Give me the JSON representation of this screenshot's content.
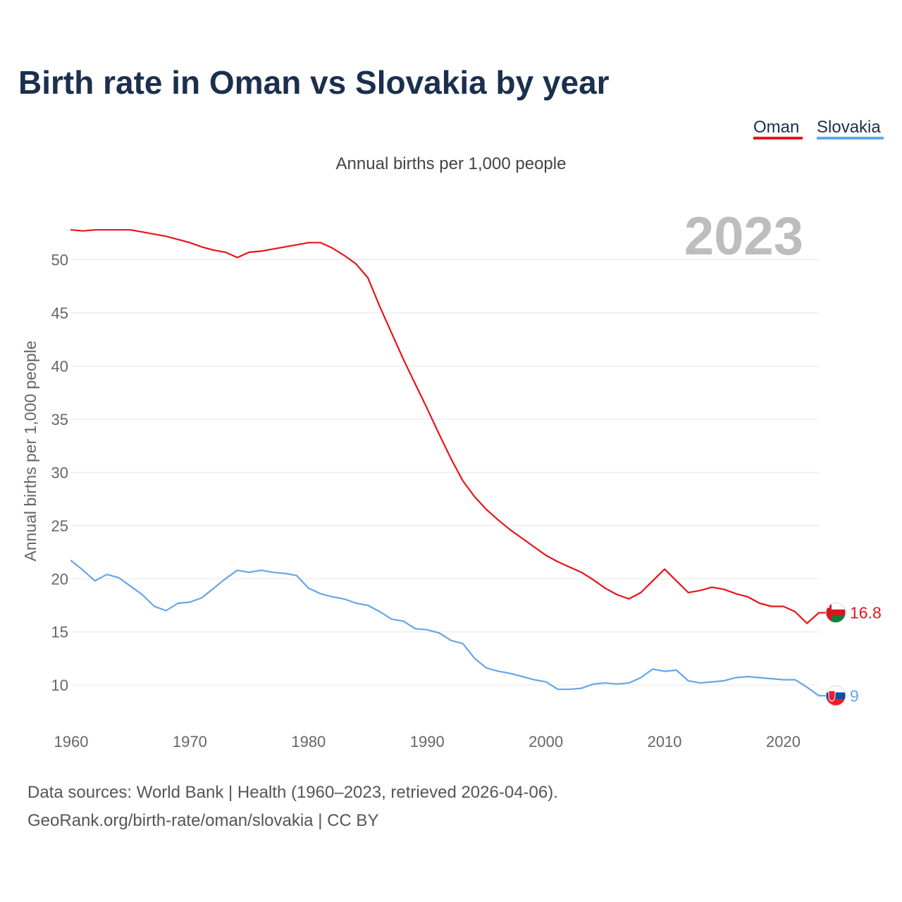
{
  "chart_data": {
    "type": "line",
    "title": "Birth rate in Oman vs Slovakia by year",
    "subtitle": "Annual births per 1,000 people",
    "ylabel": "Annual births per 1,000 people",
    "xlabel": "",
    "year_label": "2023",
    "xlim": [
      1960,
      2023
    ],
    "ylim": [
      6.5,
      55.2
    ],
    "y_ticks": [
      10,
      15,
      20,
      25,
      30,
      35,
      40,
      45,
      50
    ],
    "x_ticks": [
      1960,
      1970,
      1980,
      1990,
      2000,
      2010,
      2020
    ],
    "grid": true,
    "legend": "top-right",
    "x": [
      1960,
      1961,
      1962,
      1963,
      1964,
      1965,
      1966,
      1967,
      1968,
      1969,
      1970,
      1971,
      1972,
      1973,
      1974,
      1975,
      1976,
      1977,
      1978,
      1979,
      1980,
      1981,
      1982,
      1983,
      1984,
      1985,
      1986,
      1987,
      1988,
      1989,
      1990,
      1991,
      1992,
      1993,
      1994,
      1995,
      1996,
      1997,
      1998,
      1999,
      2000,
      2001,
      2002,
      2003,
      2004,
      2005,
      2006,
      2007,
      2008,
      2009,
      2010,
      2011,
      2012,
      2013,
      2014,
      2015,
      2016,
      2017,
      2018,
      2019,
      2020,
      2021,
      2022,
      2023
    ],
    "series": [
      {
        "name": "Oman",
        "color": "#e8141b",
        "end_label": "16.8",
        "values": [
          52.8,
          52.7,
          52.8,
          52.8,
          52.8,
          52.8,
          52.6,
          52.4,
          52.2,
          51.9,
          51.6,
          51.2,
          50.9,
          50.7,
          50.2,
          50.7,
          50.8,
          51.0,
          51.2,
          51.4,
          51.6,
          51.6,
          51.1,
          50.4,
          49.6,
          48.3,
          45.6,
          43.1,
          40.6,
          38.3,
          36.0,
          33.6,
          31.3,
          29.2,
          27.7,
          26.5,
          25.5,
          24.6,
          23.8,
          23.0,
          22.2,
          21.6,
          21.1,
          20.6,
          19.9,
          19.1,
          18.5,
          18.1,
          18.7,
          19.8,
          20.9,
          19.8,
          18.7,
          18.9,
          19.2,
          19.0,
          18.6,
          18.3,
          17.7,
          17.4,
          17.4,
          16.9,
          15.8,
          16.8
        ]
      },
      {
        "name": "Slovakia",
        "color": "#64a6ea",
        "end_label": "9",
        "values": [
          21.7,
          20.8,
          19.8,
          20.4,
          20.1,
          19.3,
          18.5,
          17.4,
          17.0,
          17.7,
          17.8,
          18.2,
          19.1,
          20.0,
          20.8,
          20.6,
          20.8,
          20.6,
          20.5,
          20.3,
          19.1,
          18.6,
          18.3,
          18.1,
          17.7,
          17.5,
          16.9,
          16.2,
          16.0,
          15.3,
          15.2,
          14.9,
          14.2,
          13.9,
          12.5,
          11.6,
          11.3,
          11.1,
          10.8,
          10.5,
          10.3,
          9.6,
          9.6,
          9.7,
          10.1,
          10.2,
          10.1,
          10.2,
          10.7,
          11.5,
          11.3,
          11.4,
          10.4,
          10.2,
          10.3,
          10.4,
          10.7,
          10.8,
          10.7,
          10.6,
          10.5,
          10.5,
          9.8,
          9.0
        ]
      }
    ]
  },
  "source": {
    "line1": "Data sources: World Bank | Health (1960–2023, retrieved 2026-04-06).",
    "line2": "GeoRank.org/birth-rate/oman/slovakia | CC BY"
  }
}
